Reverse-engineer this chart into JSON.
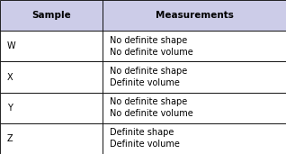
{
  "headers": [
    "Sample",
    "Measurements"
  ],
  "rows": [
    [
      "W",
      "No definite shape\nNo definite volume"
    ],
    [
      "X",
      "No definite shape\nDefinite volume"
    ],
    [
      "Y",
      "No definite shape\nNo definite volume"
    ],
    [
      "Z",
      "Definite shape\nDefinite volume"
    ]
  ],
  "header_bg": "#cccce8",
  "row_bg": "#ffffff",
  "border_color": "#000000",
  "header_fontsize": 7.5,
  "cell_fontsize": 7.0,
  "col_split": 0.36,
  "fig_width": 3.18,
  "fig_height": 1.71,
  "dpi": 100
}
